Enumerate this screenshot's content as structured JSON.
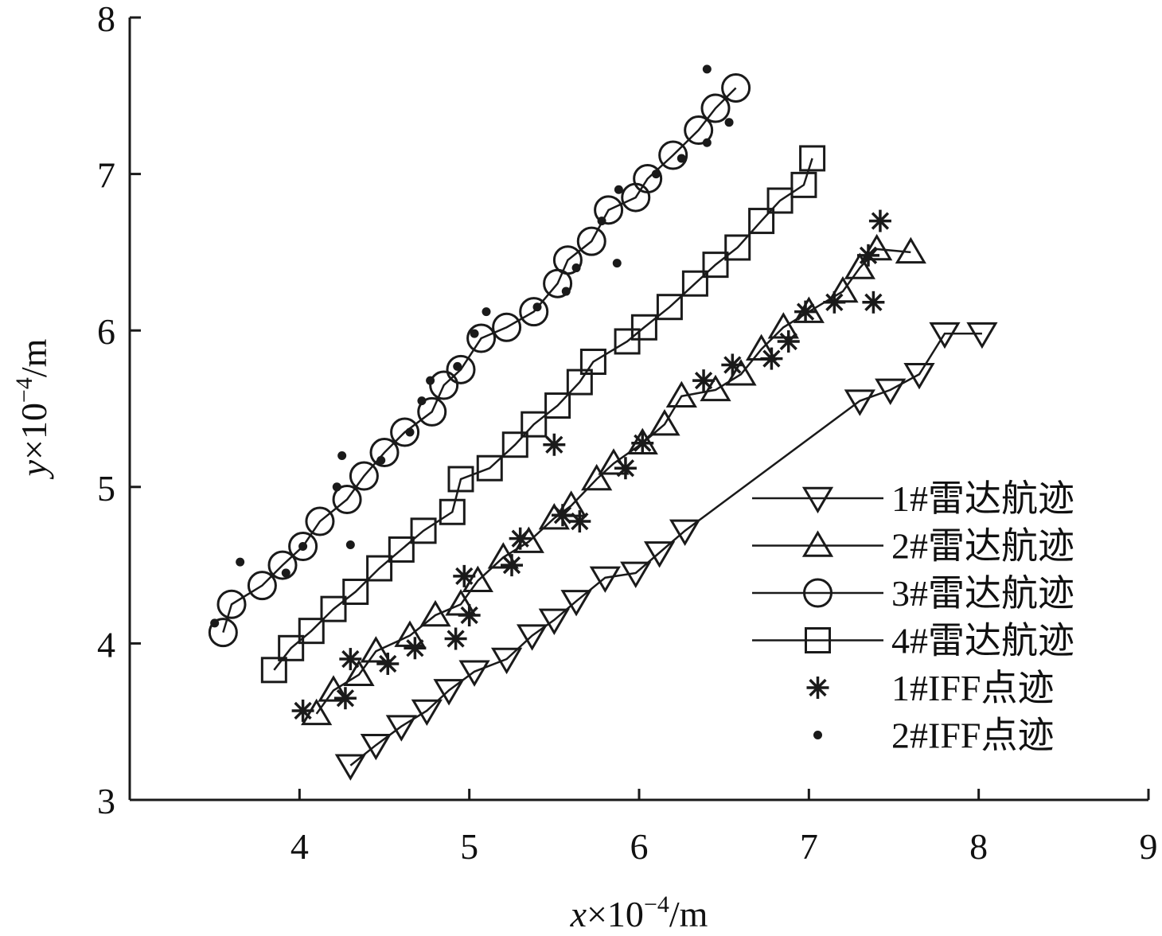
{
  "chart_data": {
    "type": "scatter",
    "title": "",
    "xlabel": {
      "var": "x",
      "unit": "×10",
      "exp": "−4",
      "suffix": "/m"
    },
    "ylabel": {
      "var": "y",
      "unit": "×10",
      "exp": "−4",
      "suffix": "/m"
    },
    "xlim": [
      3,
      9
    ],
    "ylim": [
      3,
      8
    ],
    "xticks": [
      "4",
      "5",
      "6",
      "7",
      "8",
      "9"
    ],
    "yticks": [
      "3",
      "4",
      "5",
      "6",
      "7",
      "8"
    ],
    "grid": false,
    "legend_position": "bottom-right",
    "series": [
      {
        "name": "1#雷达航迹",
        "marker": "triangle-down",
        "line": true,
        "points": [
          [
            4.3,
            3.22
          ],
          [
            4.45,
            3.35
          ],
          [
            4.6,
            3.47
          ],
          [
            4.75,
            3.57
          ],
          [
            4.88,
            3.7
          ],
          [
            5.03,
            3.82
          ],
          [
            5.22,
            3.9
          ],
          [
            5.37,
            4.05
          ],
          [
            5.5,
            4.15
          ],
          [
            5.63,
            4.27
          ],
          [
            5.8,
            4.42
          ],
          [
            5.98,
            4.45
          ],
          [
            6.12,
            4.58
          ],
          [
            6.27,
            4.72
          ],
          [
            7.3,
            5.55
          ],
          [
            7.48,
            5.62
          ],
          [
            7.65,
            5.72
          ],
          [
            7.8,
            5.98
          ],
          [
            8.02,
            5.98
          ]
        ]
      },
      {
        "name": "2#雷达航迹",
        "marker": "triangle-up",
        "line": true,
        "points": [
          [
            4.1,
            3.55
          ],
          [
            4.2,
            3.7
          ],
          [
            4.35,
            3.8
          ],
          [
            4.45,
            3.95
          ],
          [
            4.65,
            4.05
          ],
          [
            4.8,
            4.18
          ],
          [
            4.95,
            4.25
          ],
          [
            5.05,
            4.4
          ],
          [
            5.2,
            4.55
          ],
          [
            5.35,
            4.65
          ],
          [
            5.5,
            4.8
          ],
          [
            5.6,
            4.88
          ],
          [
            5.75,
            5.05
          ],
          [
            5.85,
            5.15
          ],
          [
            6.02,
            5.28
          ],
          [
            6.15,
            5.4
          ],
          [
            6.25,
            5.58
          ],
          [
            6.45,
            5.62
          ],
          [
            6.6,
            5.72
          ],
          [
            6.72,
            5.88
          ],
          [
            6.85,
            6.02
          ],
          [
            7.0,
            6.12
          ],
          [
            7.2,
            6.25
          ],
          [
            7.3,
            6.4
          ],
          [
            7.4,
            6.52
          ],
          [
            7.6,
            6.5
          ]
        ]
      },
      {
        "name": "3#雷达航迹",
        "marker": "circle",
        "line": true,
        "points": [
          [
            3.55,
            4.07
          ],
          [
            3.6,
            4.25
          ],
          [
            3.78,
            4.37
          ],
          [
            3.9,
            4.5
          ],
          [
            4.02,
            4.62
          ],
          [
            4.12,
            4.78
          ],
          [
            4.28,
            4.92
          ],
          [
            4.38,
            5.07
          ],
          [
            4.5,
            5.22
          ],
          [
            4.62,
            5.35
          ],
          [
            4.78,
            5.48
          ],
          [
            4.85,
            5.65
          ],
          [
            4.95,
            5.75
          ],
          [
            5.07,
            5.95
          ],
          [
            5.22,
            6.02
          ],
          [
            5.38,
            6.12
          ],
          [
            5.52,
            6.3
          ],
          [
            5.58,
            6.45
          ],
          [
            5.72,
            6.57
          ],
          [
            5.82,
            6.77
          ],
          [
            5.98,
            6.85
          ],
          [
            6.05,
            6.97
          ],
          [
            6.2,
            7.12
          ],
          [
            6.35,
            7.28
          ],
          [
            6.45,
            7.42
          ],
          [
            6.57,
            7.55
          ]
        ]
      },
      {
        "name": "4#雷达航迹",
        "marker": "square",
        "line": true,
        "points": [
          [
            3.85,
            3.83
          ],
          [
            3.95,
            3.97
          ],
          [
            4.07,
            4.08
          ],
          [
            4.2,
            4.22
          ],
          [
            4.33,
            4.33
          ],
          [
            4.47,
            4.48
          ],
          [
            4.6,
            4.6
          ],
          [
            4.73,
            4.72
          ],
          [
            4.9,
            4.84
          ],
          [
            4.95,
            5.05
          ],
          [
            5.12,
            5.12
          ],
          [
            5.27,
            5.27
          ],
          [
            5.38,
            5.4
          ],
          [
            5.52,
            5.52
          ],
          [
            5.65,
            5.67
          ],
          [
            5.73,
            5.8
          ],
          [
            5.93,
            5.93
          ],
          [
            6.03,
            6.02
          ],
          [
            6.18,
            6.15
          ],
          [
            6.33,
            6.3
          ],
          [
            6.45,
            6.42
          ],
          [
            6.58,
            6.53
          ],
          [
            6.72,
            6.7
          ],
          [
            6.83,
            6.83
          ],
          [
            6.97,
            6.93
          ],
          [
            7.02,
            7.1
          ]
        ]
      },
      {
        "name": "1#IFF点迹",
        "marker": "asterisk",
        "line": false,
        "points": [
          [
            4.02,
            3.57
          ],
          [
            4.27,
            3.65
          ],
          [
            4.3,
            3.9
          ],
          [
            4.52,
            3.87
          ],
          [
            4.68,
            3.97
          ],
          [
            4.92,
            4.03
          ],
          [
            5.0,
            4.18
          ],
          [
            4.97,
            4.43
          ],
          [
            5.25,
            4.5
          ],
          [
            5.3,
            4.67
          ],
          [
            5.5,
            5.27
          ],
          [
            5.55,
            4.82
          ],
          [
            5.65,
            4.78
          ],
          [
            5.92,
            5.12
          ],
          [
            6.02,
            5.28
          ],
          [
            6.38,
            5.68
          ],
          [
            6.55,
            5.78
          ],
          [
            6.78,
            5.82
          ],
          [
            6.88,
            5.93
          ],
          [
            6.98,
            6.12
          ],
          [
            7.15,
            6.18
          ],
          [
            7.35,
            6.48
          ],
          [
            7.38,
            6.18
          ],
          [
            7.42,
            6.7
          ]
        ]
      },
      {
        "name": "2#IFF点迹",
        "marker": "dot",
        "line": false,
        "points": [
          [
            3.5,
            4.13
          ],
          [
            3.65,
            4.52
          ],
          [
            3.92,
            4.45
          ],
          [
            4.02,
            4.62
          ],
          [
            4.22,
            5.0
          ],
          [
            4.25,
            5.2
          ],
          [
            4.3,
            4.63
          ],
          [
            4.48,
            5.17
          ],
          [
            4.65,
            5.35
          ],
          [
            4.72,
            5.55
          ],
          [
            4.77,
            5.68
          ],
          [
            4.93,
            5.77
          ],
          [
            5.03,
            5.98
          ],
          [
            5.1,
            6.12
          ],
          [
            5.4,
            6.15
          ],
          [
            5.57,
            6.25
          ],
          [
            5.63,
            6.4
          ],
          [
            5.78,
            6.7
          ],
          [
            5.88,
            6.9
          ],
          [
            5.87,
            6.43
          ],
          [
            6.1,
            7.0
          ],
          [
            6.25,
            7.1
          ],
          [
            6.4,
            7.2
          ],
          [
            6.4,
            7.67
          ],
          [
            6.53,
            7.33
          ]
        ]
      }
    ]
  }
}
